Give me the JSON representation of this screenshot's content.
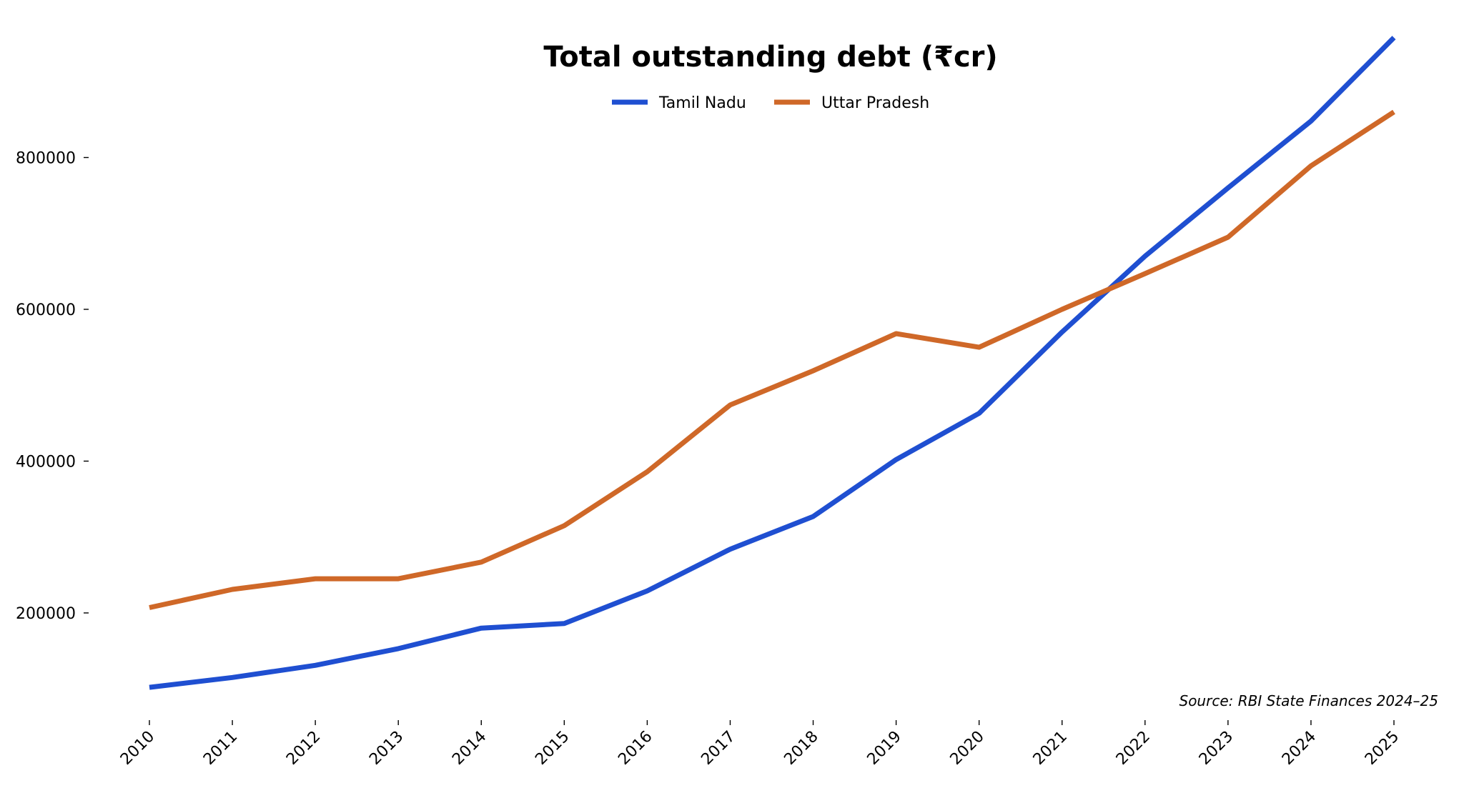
{
  "chart_data": {
    "type": "line",
    "title": "Total outstanding debt (₹cr)",
    "xlabel": "",
    "ylabel": "",
    "x": [
      "2010",
      "2011",
      "2012",
      "2013",
      "2014",
      "2015",
      "2016",
      "2017",
      "2018",
      "2019",
      "2020",
      "2021",
      "2022",
      "2023",
      "2024",
      "2025"
    ],
    "series": [
      {
        "name": "Tamil Nadu",
        "color": "#1f4fd1",
        "values": [
          102000,
          115000,
          131000,
          153000,
          180000,
          186000,
          229000,
          284000,
          327000,
          402000,
          463000,
          570000,
          670000,
          760000,
          848000,
          958000
        ]
      },
      {
        "name": "Uttar Pradesh",
        "color": "#cf6828",
        "values": [
          207000,
          231000,
          245000,
          245000,
          267000,
          315000,
          386000,
          474000,
          519000,
          568000,
          550000,
          600000,
          647000,
          695000,
          789000,
          860000
        ]
      }
    ],
    "yticks": [
      200000,
      400000,
      600000,
      800000
    ],
    "ylim": [
      55000,
      1000000
    ],
    "grid": false,
    "legend": "top-center",
    "source": "Source: RBI State Finances 2024–25"
  }
}
